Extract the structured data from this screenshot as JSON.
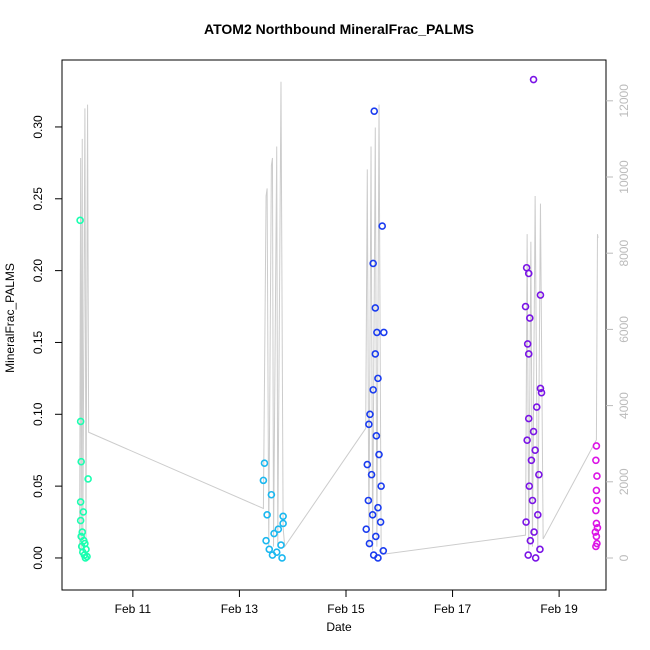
{
  "chart_data": {
    "type": "scatter",
    "title": "ATOM2 Northbound MineralFrac_PALMS",
    "x_label": "Date",
    "y_label": "MineralFrac_PALMS",
    "xlim": [
      9.67,
      19.88
    ],
    "xticks": [
      {
        "value": 11,
        "label": "Feb 11"
      },
      {
        "value": 13,
        "label": "Feb 13"
      },
      {
        "value": 15,
        "label": "Feb 15"
      },
      {
        "value": 17,
        "label": "Feb 17"
      },
      {
        "value": 19,
        "label": "Feb 19"
      }
    ],
    "ylim": [
      -0.0223,
      0.3466
    ],
    "yticks": [
      {
        "value": 0,
        "label": "0.00"
      },
      {
        "value": 0.05,
        "label": "0.05"
      },
      {
        "value": 0.1,
        "label": "0.10"
      },
      {
        "value": 0.15,
        "label": "0.15"
      },
      {
        "value": 0.2,
        "label": "0.20"
      },
      {
        "value": 0.25,
        "label": "0.25"
      },
      {
        "value": 0.3,
        "label": "0.30"
      }
    ],
    "y2lim": [
      -840,
      13071
    ],
    "y2ticks": [
      0,
      2000,
      4000,
      6000,
      8000,
      10000,
      12000
    ],
    "series": [
      {
        "color": "#1affb0",
        "x": [
          10.01,
          10.02,
          10.03,
          10.16,
          10.02,
          10.07,
          10.02,
          10.05,
          10.03,
          10.08,
          10.1,
          10.04,
          10.12,
          10.06,
          10.09,
          10.14,
          10.11
        ],
        "values": [
          0.235,
          0.095,
          0.067,
          0.055,
          0.039,
          0.032,
          0.026,
          0.018,
          0.015,
          0.012,
          0.01,
          0.008,
          0.006,
          0.004,
          0.002,
          0.001,
          0
        ]
      },
      {
        "color": "#1ab8f0",
        "x": [
          13.47,
          13.45,
          13.6,
          13.52,
          13.82,
          13.82,
          13.73,
          13.65,
          13.5,
          13.78,
          13.56,
          13.7,
          13.62,
          13.8
        ],
        "values": [
          0.066,
          0.054,
          0.044,
          0.03,
          0.029,
          0.024,
          0.02,
          0.017,
          0.012,
          0.009,
          0.006,
          0.004,
          0.002,
          0
        ]
      },
      {
        "color": "#1a3cf0",
        "x": [
          15.53,
          15.68,
          15.51,
          15.55,
          15.58,
          15.71,
          15.55,
          15.6,
          15.51,
          15.45,
          15.43,
          15.57,
          15.62,
          15.4,
          15.48,
          15.66,
          15.42,
          15.6,
          15.5,
          15.65,
          15.38,
          15.56,
          15.44,
          15.7,
          15.52,
          15.6
        ],
        "values": [
          0.311,
          0.231,
          0.205,
          0.174,
          0.157,
          0.157,
          0.142,
          0.125,
          0.117,
          0.1,
          0.093,
          0.085,
          0.072,
          0.065,
          0.058,
          0.05,
          0.04,
          0.035,
          0.03,
          0.025,
          0.02,
          0.015,
          0.01,
          0.005,
          0.002,
          0
        ]
      },
      {
        "color": "#7a14e6",
        "x": [
          18.52,
          18.39,
          18.43,
          18.65,
          18.37,
          18.45,
          18.41,
          18.43,
          18.65,
          18.67,
          18.58,
          18.43,
          18.52,
          18.4,
          18.55,
          18.48,
          18.62,
          18.44,
          18.5,
          18.6,
          18.38,
          18.53,
          18.46,
          18.64,
          18.42,
          18.56
        ],
        "values": [
          0.333,
          0.202,
          0.198,
          0.183,
          0.175,
          0.167,
          0.149,
          0.142,
          0.118,
          0.115,
          0.105,
          0.097,
          0.088,
          0.082,
          0.075,
          0.068,
          0.058,
          0.05,
          0.04,
          0.03,
          0.025,
          0.018,
          0.012,
          0.006,
          0.002,
          0
        ]
      },
      {
        "color": "#dc14e6",
        "x": [
          19.7,
          19.69,
          19.71,
          19.7,
          19.71,
          19.69,
          19.7,
          19.72,
          19.68,
          19.7,
          19.71,
          19.69
        ],
        "values": [
          0.078,
          0.068,
          0.057,
          0.047,
          0.04,
          0.033,
          0.024,
          0.021,
          0.018,
          0.015,
          0.01,
          0.008
        ]
      },
      {
        "type": "line",
        "axis": "y2",
        "color": "#cccccc",
        "x": [
          10.0,
          10.02,
          10.03,
          10.05,
          10.06,
          10.1,
          10.12,
          10.15,
          10.17,
          13.45,
          13.5,
          13.52,
          13.55,
          13.6,
          13.62,
          13.64,
          13.7,
          13.72,
          13.78,
          13.82,
          13.85,
          15.37,
          15.4,
          15.43,
          15.47,
          15.5,
          15.55,
          15.58,
          15.62,
          15.66,
          15.7,
          18.37,
          18.4,
          18.43,
          18.47,
          18.5,
          18.55,
          18.6,
          18.65,
          18.7,
          19.7,
          19.72,
          19.73
        ],
        "values": [
          200,
          10500,
          200,
          11000,
          300,
          11800,
          400,
          11900,
          3300,
          1300,
          9500,
          9700,
          300,
          10300,
          10500,
          300,
          10800,
          300,
          12500,
          800,
          300,
          3400,
          10200,
          300,
          10800,
          200,
          11300,
          300,
          11900,
          200,
          100,
          600,
          8500,
          200,
          8300,
          300,
          9500,
          200,
          9300,
          500,
          3100,
          8500,
          8400
        ]
      }
    ]
  }
}
